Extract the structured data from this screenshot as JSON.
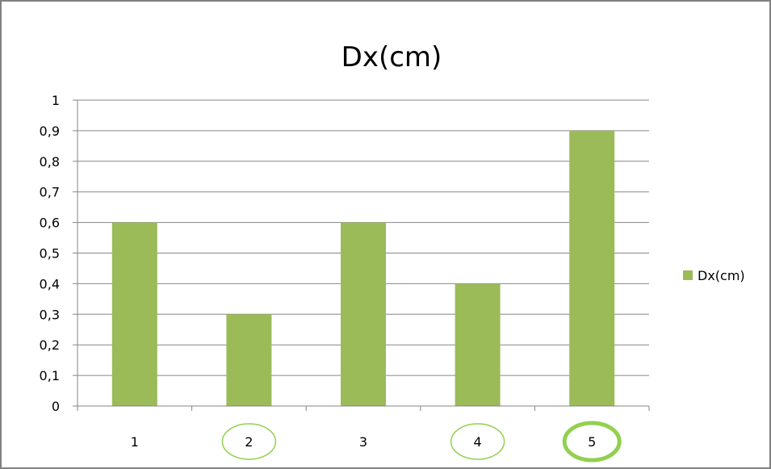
{
  "chart_data": {
    "type": "bar",
    "title": "Dx(cm)",
    "xlabel": "",
    "ylabel": "",
    "categories": [
      "1",
      "2",
      "3",
      "4",
      "5"
    ],
    "series": [
      {
        "name": "Dx(cm)",
        "values": [
          0.6,
          0.3,
          0.6,
          0.4,
          0.9
        ],
        "color": "#9bbb59"
      }
    ],
    "ylim": [
      0,
      1
    ],
    "yticks": [
      0,
      0.1,
      0.2,
      0.3,
      0.4,
      0.5,
      0.6,
      0.7,
      0.8,
      0.9,
      1
    ],
    "ytick_labels": [
      "0",
      "0,1",
      "0,2",
      "0,3",
      "0,4",
      "0,5",
      "0,6",
      "0,7",
      "0,8",
      "0,9",
      "1"
    ],
    "grid": true,
    "legend": "right",
    "frame_color": "#808080",
    "gridline_color": "#878787",
    "axis_color": "#868686",
    "highlight_color": "#92d050",
    "highlighted_categories": [
      {
        "category": "2",
        "emphasis": "thin"
      },
      {
        "category": "4",
        "emphasis": "thin"
      },
      {
        "category": "5",
        "emphasis": "thick"
      }
    ]
  }
}
